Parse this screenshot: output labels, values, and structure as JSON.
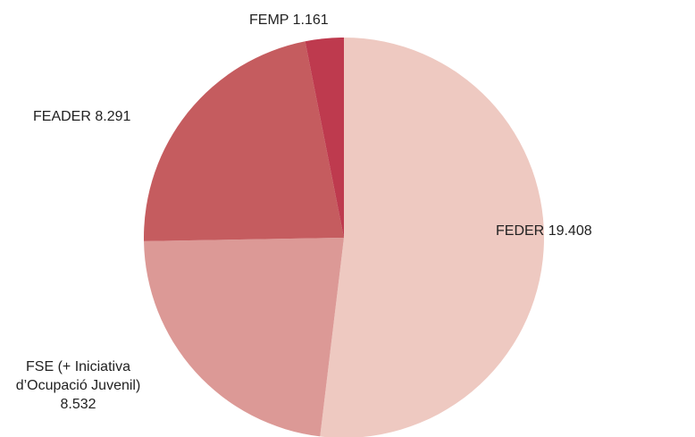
{
  "chart_data": {
    "type": "pie",
    "categories": [
      "FEDER",
      "FSE (+ Iniciativa d’Ocupació Juvenil)",
      "FEADER",
      "FEMP"
    ],
    "values": [
      19408,
      8532,
      8291,
      1161
    ],
    "value_labels": [
      "19.408",
      "8.532",
      "8.291",
      "1.161"
    ],
    "colors": [
      "#eec9c1",
      "#dc9996",
      "#c55c5f",
      "#be3a4e"
    ]
  }
}
